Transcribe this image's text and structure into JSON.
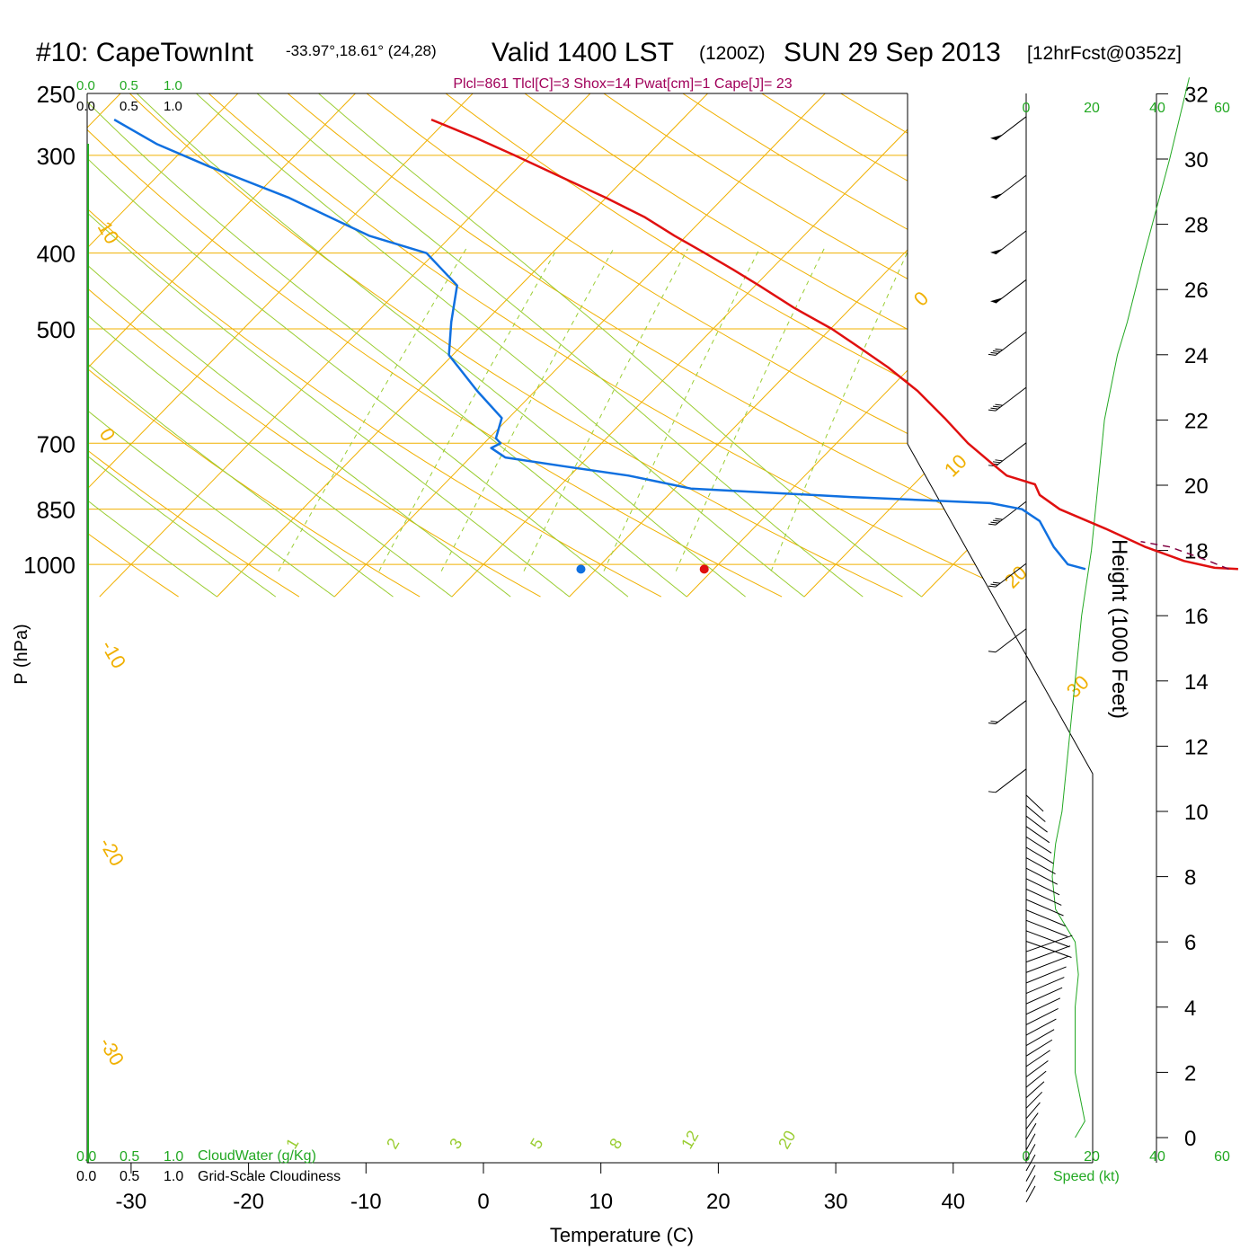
{
  "header": {
    "title_main": "#10: CapeTownInt",
    "title_coords": "-33.97°,18.61° (24,28)",
    "title_valid": "Valid 1400 LST",
    "title_z": "(1200Z)",
    "title_date": "SUN 29 Sep 2013",
    "title_fcst": "[12hrFcst@0352z]",
    "indices": "Plcl=861 Tlcl[C]=3 Shox=14 Pwat[cm]=1 Cape[J]= 23"
  },
  "colors": {
    "temperature": "#e01010",
    "dewpoint": "#1070e0",
    "isotherm": "#f0b000",
    "green": "#22a822",
    "mixing": "#9acd32",
    "parcel": "#800040",
    "index_text": "#a0005a"
  },
  "chart_data": {
    "type": "line",
    "title": "Skew-T log-P sounding",
    "xlabel": "Temperature (C)",
    "ylabel": "P (hPa)",
    "right_axis_label": "Height (1000 Feet)",
    "x_ticks": [
      -30,
      -20,
      -10,
      0,
      10,
      20,
      30,
      40
    ],
    "pressure_ticks": [
      250,
      300,
      400,
      500,
      700,
      850,
      1000
    ],
    "height_ticks": [
      0,
      2,
      4,
      6,
      8,
      10,
      12,
      14,
      16,
      18,
      20,
      22,
      24,
      26,
      28,
      30,
      32
    ],
    "isotherm_labels": [
      "10",
      "0",
      "-10",
      "-20",
      "-30",
      "0",
      "10",
      "20",
      "30"
    ],
    "mixing_ratio_labels": [
      "1",
      "2",
      "3",
      "5",
      "8",
      "12",
      "20"
    ],
    "cloud_scales": {
      "cloudwater_ticks": [
        "0.0",
        "0.5",
        "1.0"
      ],
      "cloudwater_label": "CloudWater (g/Kg)",
      "cloudiness_ticks": [
        "0.0",
        "0.5",
        "1.0"
      ],
      "cloudiness_label": "Grid-Scale Cloudiness"
    },
    "speed_ticks": [
      "0",
      "20",
      "40",
      "60"
    ],
    "speed_label": "Speed (kt)",
    "series": [
      {
        "name": "temperature",
        "points": [
          {
            "p": 270,
            "t": -4.9
          },
          {
            "p": 285,
            "t": -1.1
          },
          {
            "p": 300,
            "t": 2.2
          },
          {
            "p": 320,
            "t": 6.2
          },
          {
            "p": 340,
            "t": 10.0
          },
          {
            "p": 360,
            "t": 13.3
          },
          {
            "p": 380,
            "t": 15.8
          },
          {
            "p": 400,
            "t": 18.4
          },
          {
            "p": 420,
            "t": 20.8
          },
          {
            "p": 440,
            "t": 23.0
          },
          {
            "p": 470,
            "t": 26.0
          },
          {
            "p": 500,
            "t": 29.2
          },
          {
            "p": 530,
            "t": 31.7
          },
          {
            "p": 560,
            "t": 34.0
          },
          {
            "p": 600,
            "t": 36.5
          },
          {
            "p": 650,
            "t": 38.8
          },
          {
            "p": 700,
            "t": 40.8
          },
          {
            "p": 740,
            "t": 42.7
          },
          {
            "p": 770,
            "t": 44.1
          },
          {
            "p": 790,
            "t": 46.5
          },
          {
            "p": 815,
            "t": 46.9
          },
          {
            "p": 850,
            "t": 48.6
          },
          {
            "p": 900,
            "t": 52.5
          },
          {
            "p": 950,
            "t": 55.9
          },
          {
            "p": 990,
            "t": 59.2
          },
          {
            "p": 1010,
            "t": 61.8
          },
          {
            "p": 1014,
            "t": 63.8
          }
        ]
      },
      {
        "name": "dewpoint",
        "points": [
          {
            "p": 270,
            "t": -31.9
          },
          {
            "p": 290,
            "t": -28.3
          },
          {
            "p": 310,
            "t": -23.8
          },
          {
            "p": 340,
            "t": -17.0
          },
          {
            "p": 380,
            "t": -10.2
          },
          {
            "p": 400,
            "t": -5.3
          },
          {
            "p": 440,
            "t": -2.7
          },
          {
            "p": 490,
            "t": -3.2
          },
          {
            "p": 540,
            "t": -3.4
          },
          {
            "p": 600,
            "t": -1.0
          },
          {
            "p": 650,
            "t": 1.1
          },
          {
            "p": 690,
            "t": 0.6
          },
          {
            "p": 700,
            "t": 1.0
          },
          {
            "p": 710,
            "t": 0.2
          },
          {
            "p": 730,
            "t": 1.4
          },
          {
            "p": 750,
            "t": 6.6
          },
          {
            "p": 770,
            "t": 11.9
          },
          {
            "p": 785,
            "t": 14.6
          },
          {
            "p": 800,
            "t": 17.2
          },
          {
            "p": 820,
            "t": 30.8
          },
          {
            "p": 835,
            "t": 42.7
          },
          {
            "p": 850,
            "t": 45.4
          },
          {
            "p": 880,
            "t": 46.9
          },
          {
            "p": 950,
            "t": 48.1
          },
          {
            "p": 1000,
            "t": 49.3
          },
          {
            "p": 1014,
            "t": 50.8
          }
        ]
      },
      {
        "name": "parcel",
        "points": [
          {
            "p": 1014,
            "t": 63.0
          },
          {
            "p": 990,
            "t": 61.3
          },
          {
            "p": 950,
            "t": 58.0
          },
          {
            "p": 935,
            "t": 55.5
          }
        ]
      }
    ],
    "surface_markers": [
      {
        "name": "surface_temperature",
        "t": 18.8,
        "p": 1014
      },
      {
        "name": "surface_dewpoint",
        "t": 8.3,
        "p": 1014
      }
    ],
    "wind_profile": [
      {
        "height_kft": 31.3,
        "speed_kt": 55
      },
      {
        "height_kft": 29.5,
        "speed_kt": 55
      },
      {
        "height_kft": 27.8,
        "speed_kt": 55
      },
      {
        "height_kft": 26.3,
        "speed_kt": 55
      },
      {
        "height_kft": 24.7,
        "speed_kt": 40
      },
      {
        "height_kft": 23.0,
        "speed_kt": 40
      },
      {
        "height_kft": 21.3,
        "speed_kt": 40
      },
      {
        "height_kft": 19.5,
        "speed_kt": 40
      },
      {
        "height_kft": 17.6,
        "speed_kt": 25
      },
      {
        "height_kft": 15.6,
        "speed_kt": 5
      },
      {
        "height_kft": 13.4,
        "speed_kt": 20
      },
      {
        "height_kft": 11.3,
        "speed_kt": 10
      }
    ],
    "speed_profile": [
      {
        "h": 32.5,
        "v": 50
      },
      {
        "h": 30,
        "v": 44
      },
      {
        "h": 27,
        "v": 36
      },
      {
        "h": 25,
        "v": 31
      },
      {
        "h": 24,
        "v": 28
      },
      {
        "h": 22,
        "v": 24
      },
      {
        "h": 20,
        "v": 22
      },
      {
        "h": 18,
        "v": 20
      },
      {
        "h": 16,
        "v": 17
      },
      {
        "h": 14,
        "v": 15
      },
      {
        "h": 12,
        "v": 13
      },
      {
        "h": 10,
        "v": 11
      },
      {
        "h": 9,
        "v": 9
      },
      {
        "h": 8,
        "v": 8
      },
      {
        "h": 7,
        "v": 9
      },
      {
        "h": 6,
        "v": 15
      },
      {
        "h": 5,
        "v": 16
      },
      {
        "h": 4,
        "v": 15
      },
      {
        "h": 3,
        "v": 15
      },
      {
        "h": 2,
        "v": 15
      },
      {
        "h": 0.5,
        "v": 18
      },
      {
        "h": 0,
        "v": 15
      }
    ]
  }
}
